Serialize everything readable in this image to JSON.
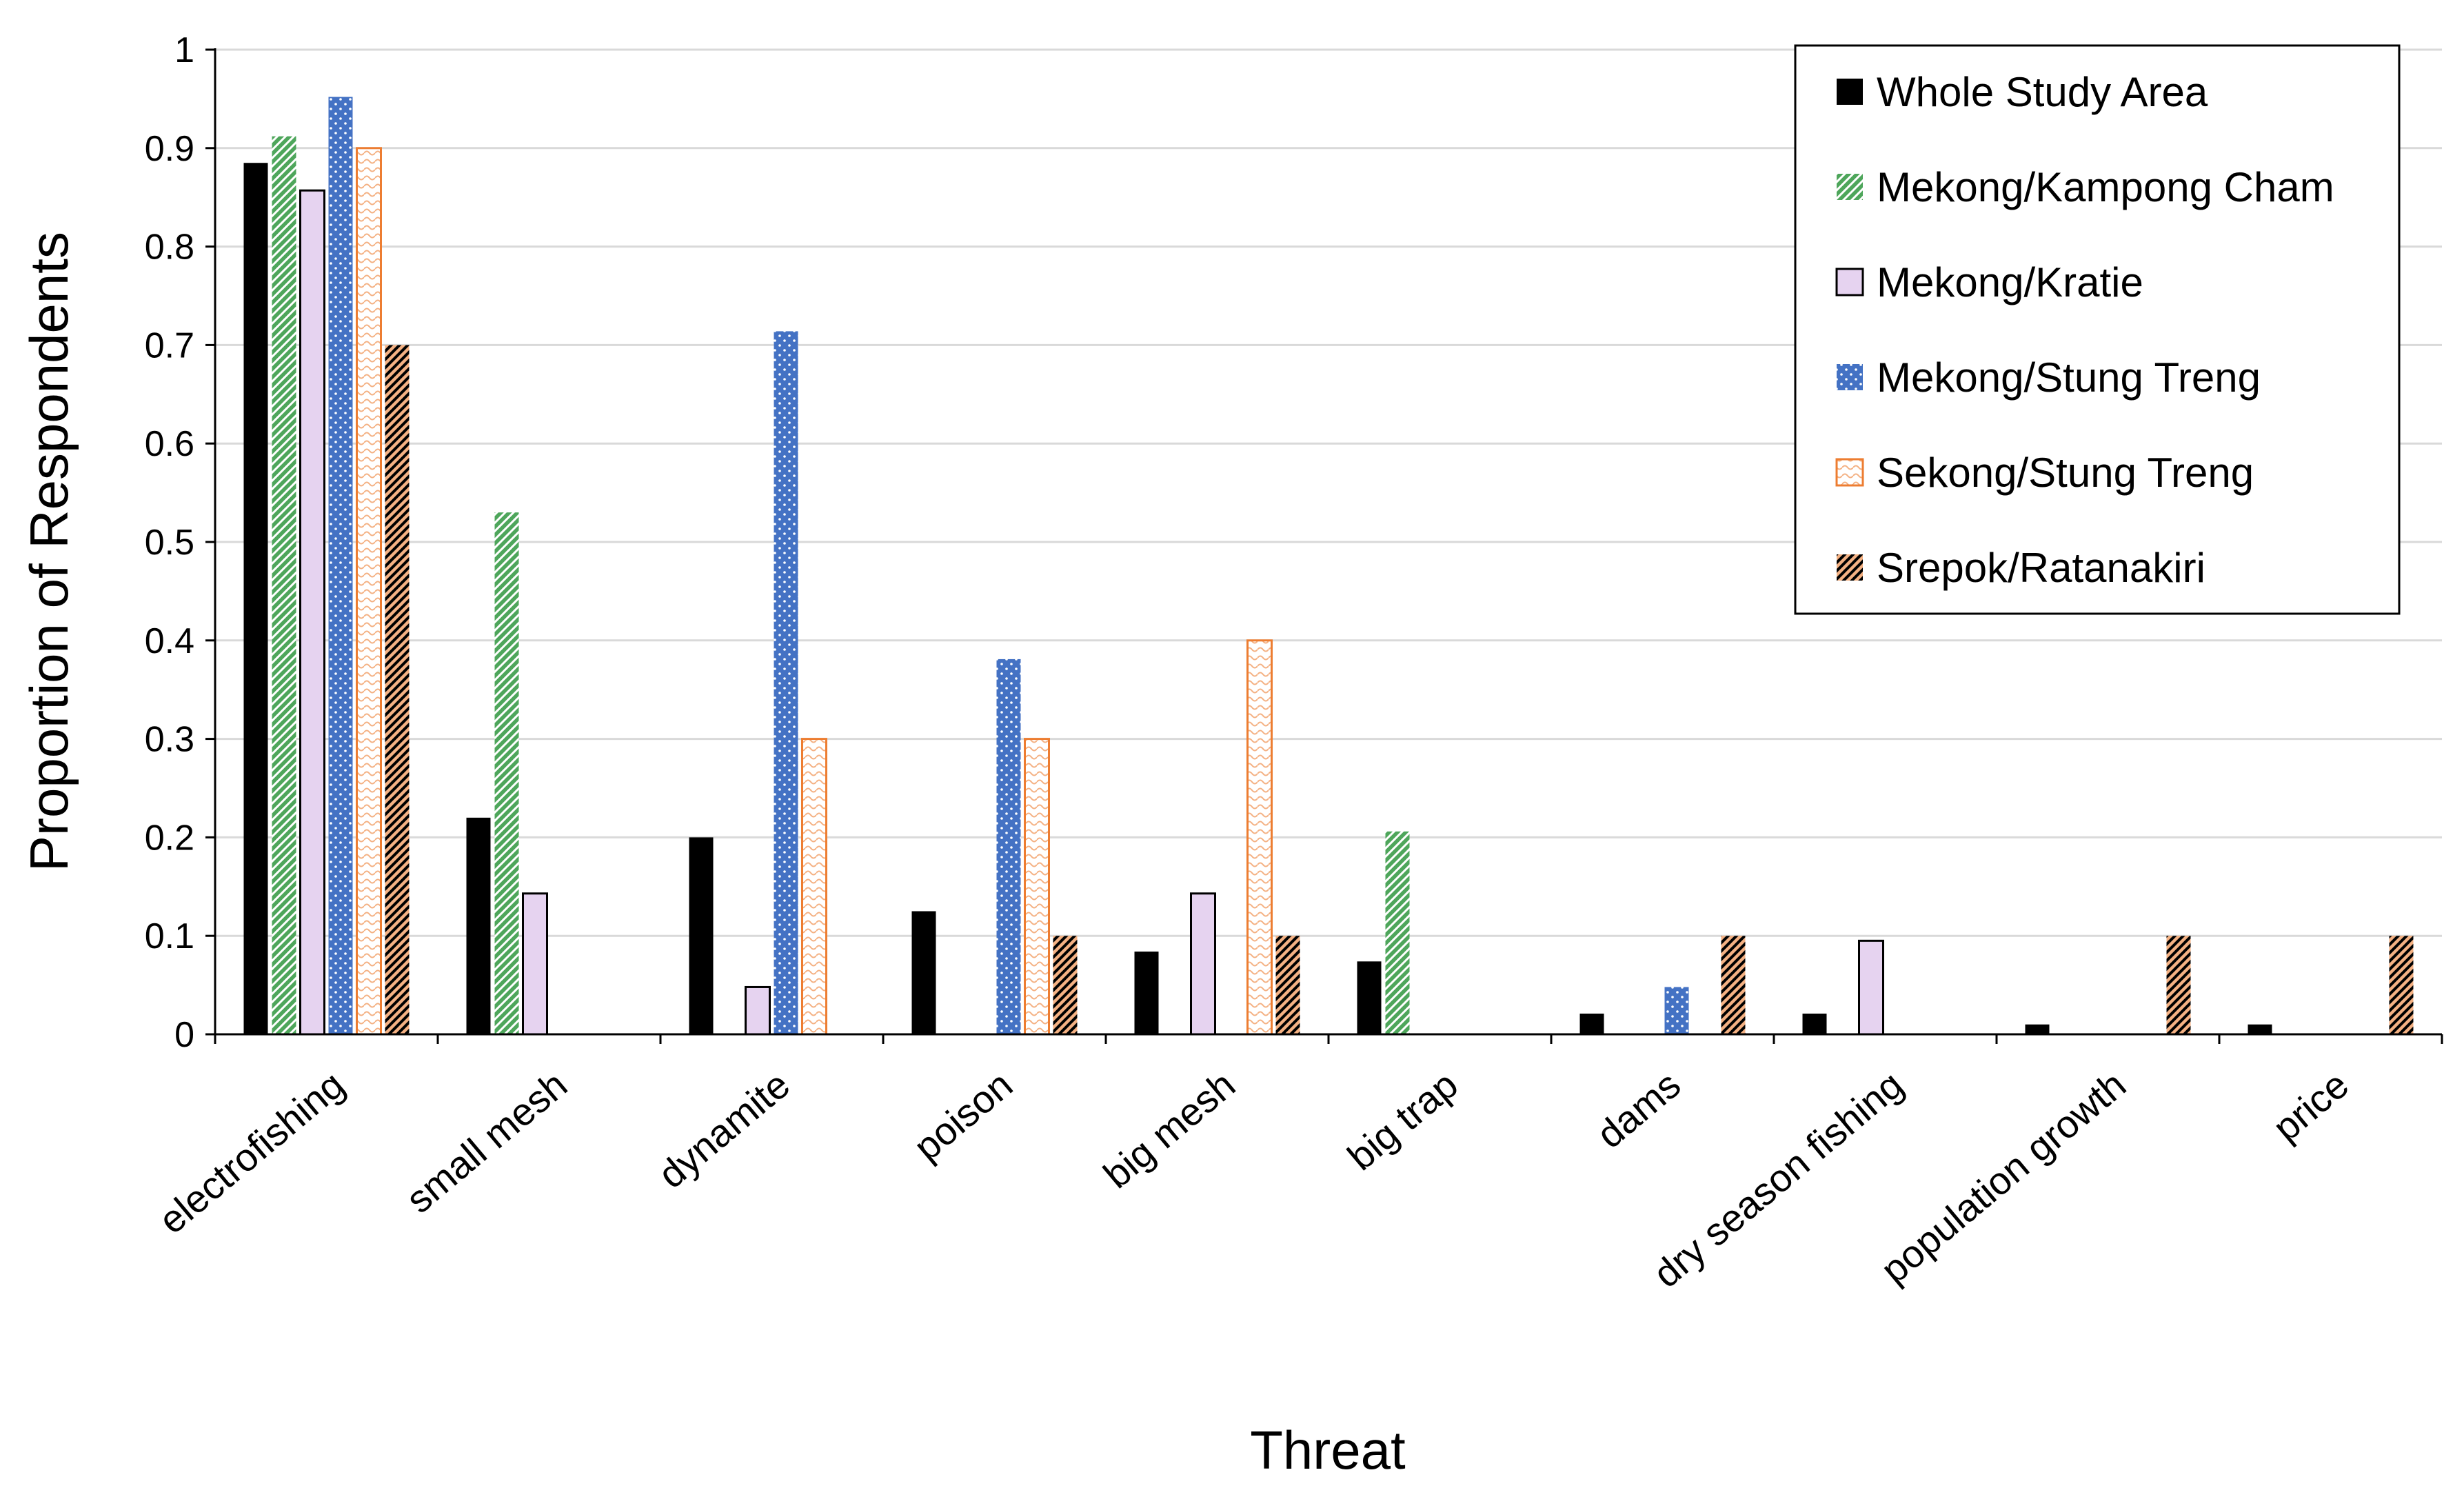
{
  "chart_data": {
    "type": "bar",
    "title": "",
    "xlabel": "Threat",
    "ylabel": "Proportion of Respondents",
    "ylim": [
      0,
      1
    ],
    "yticks": [
      "0",
      "0.1",
      "0.2",
      "0.3",
      "0.4",
      "0.5",
      "0.6",
      "0.7",
      "0.8",
      "0.9",
      "1"
    ],
    "grid": true,
    "legend_position": "top-right",
    "categories": [
      "electrofishing",
      "small mesh",
      "dynamite",
      "poison",
      "big mesh",
      "big trap",
      "dams",
      "dry season fishing",
      "population growth",
      "price"
    ],
    "series": [
      {
        "name": "Whole Study Area",
        "color": "#000000",
        "pattern": "solid",
        "values": [
          0.885,
          0.22,
          0.2,
          0.125,
          0.084,
          0.074,
          0.021,
          0.021,
          0.01,
          0.01
        ]
      },
      {
        "name": "Mekong/Kampong Cham",
        "color": "#4ea65b",
        "pattern": "diagonal-checker",
        "values": [
          0.912,
          0.53,
          0,
          0,
          0,
          0.206,
          0,
          0,
          0,
          0
        ]
      },
      {
        "name": "Mekong/Kratie",
        "color": "#e6d3f0",
        "pattern": "solid-outlined",
        "values": [
          0.857,
          0.143,
          0.048,
          0,
          0.143,
          0,
          0,
          0.095,
          0,
          0
        ]
      },
      {
        "name": "Mekong/Stung Treng",
        "color": "#4472c4",
        "pattern": "dotted",
        "values": [
          0.952,
          0,
          0.714,
          0.381,
          0,
          0,
          0.048,
          0,
          0,
          0
        ]
      },
      {
        "name": "Sekong/Stung Treng",
        "color": "#ed7d31",
        "pattern": "light-waves",
        "values": [
          0.9,
          0,
          0.3,
          0.3,
          0.4,
          0,
          0,
          0,
          0,
          0
        ]
      },
      {
        "name": "Srepok/Ratanakiri",
        "color": "#f4b183",
        "pattern": "dark-diagonal",
        "values": [
          0.7,
          0,
          0,
          0.1,
          0.1,
          0,
          0.1,
          0,
          0.1,
          0.1
        ]
      }
    ]
  }
}
